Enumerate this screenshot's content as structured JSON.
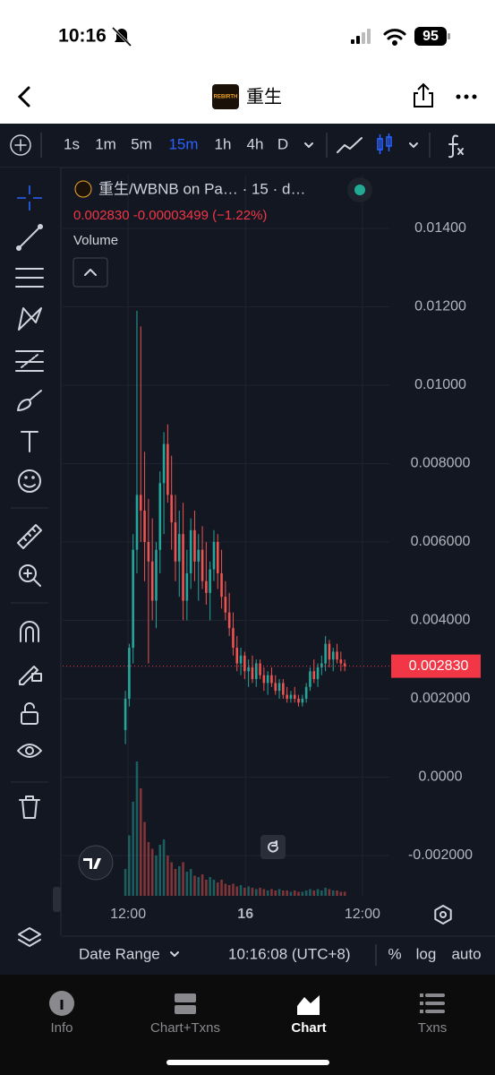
{
  "status_bar": {
    "time": "10:16",
    "battery": "95"
  },
  "nav": {
    "title": "重生",
    "icon_text": "REBIRTH"
  },
  "toolbar": {
    "intervals": [
      "1s",
      "1m",
      "5m",
      "15m",
      "1h",
      "4h",
      "D"
    ],
    "active_interval": 3
  },
  "chart_data": {
    "type": "candlestick",
    "legend_title": "重生/WBNB on Pa… · 15 · d…",
    "ohlc_label": "0.002830  -0.00003499 (−1.22%)",
    "volume_label": "Volume",
    "open": [
      0.0012,
      0.002,
      0.0033,
      0.0058,
      0.0072,
      0.0068,
      0.006,
      0.0055,
      0.0045,
      0.0058,
      0.0075,
      0.0085,
      0.0072,
      0.0065,
      0.0055,
      0.0062,
      0.0045,
      0.0052,
      0.0063,
      0.0055,
      0.0058,
      0.005,
      0.0047,
      0.0053,
      0.006,
      0.0052,
      0.0046,
      0.0042,
      0.0038,
      0.0033,
      0.0029,
      0.0031,
      0.0027,
      0.0028,
      0.0025,
      0.0029,
      0.0026,
      0.0024,
      0.0026,
      0.0024,
      0.0022,
      0.0024,
      0.0021,
      0.002,
      0.0021,
      0.002,
      0.0019,
      0.002,
      0.0023,
      0.0027,
      0.0025,
      0.0028,
      0.0029,
      0.0034,
      0.003,
      0.0032,
      0.003,
      0.0029
    ],
    "high": [
      0.0022,
      0.0034,
      0.0062,
      0.0119,
      0.0115,
      0.0083,
      0.0071,
      0.0066,
      0.006,
      0.0078,
      0.0088,
      0.009,
      0.0082,
      0.0072,
      0.0068,
      0.007,
      0.0058,
      0.0066,
      0.0068,
      0.0062,
      0.0064,
      0.006,
      0.0055,
      0.0063,
      0.0062,
      0.0058,
      0.005,
      0.0047,
      0.0042,
      0.0036,
      0.0033,
      0.0032,
      0.003,
      0.0031,
      0.003,
      0.003,
      0.0028,
      0.0027,
      0.0028,
      0.0026,
      0.0025,
      0.0025,
      0.0023,
      0.0022,
      0.0023,
      0.0021,
      0.0021,
      0.0024,
      0.0028,
      0.003,
      0.0029,
      0.0031,
      0.0036,
      0.0035,
      0.0033,
      0.0034,
      0.0032,
      0.003
    ],
    "low": [
      0.00084,
      0.0018,
      0.0029,
      0.0052,
      0.006,
      0.005,
      0.0029,
      0.004,
      0.0038,
      0.0052,
      0.0062,
      0.007,
      0.0058,
      0.005,
      0.0046,
      0.004,
      0.004,
      0.0048,
      0.005,
      0.0045,
      0.0048,
      0.0044,
      0.004,
      0.005,
      0.0048,
      0.0043,
      0.004,
      0.0036,
      0.0031,
      0.0027,
      0.0026,
      0.0025,
      0.0023,
      0.0024,
      0.0023,
      0.0025,
      0.0022,
      0.0021,
      0.0023,
      0.0021,
      0.002,
      0.002,
      0.0019,
      0.0019,
      0.0019,
      0.0018,
      0.0018,
      0.0019,
      0.0022,
      0.0024,
      0.0023,
      0.0026,
      0.0027,
      0.0028,
      0.0027,
      0.0029,
      0.0027,
      0.0027
    ],
    "close": [
      0.002,
      0.0033,
      0.0058,
      0.0072,
      0.0068,
      0.006,
      0.0055,
      0.0045,
      0.0058,
      0.0075,
      0.0085,
      0.0072,
      0.0065,
      0.0055,
      0.0062,
      0.0045,
      0.0052,
      0.0063,
      0.0055,
      0.0058,
      0.005,
      0.0047,
      0.0053,
      0.006,
      0.0052,
      0.0046,
      0.0042,
      0.0038,
      0.0033,
      0.0029,
      0.0031,
      0.0027,
      0.0028,
      0.0025,
      0.0029,
      0.0026,
      0.0024,
      0.0026,
      0.0024,
      0.0022,
      0.0024,
      0.0021,
      0.002,
      0.0021,
      0.002,
      0.0019,
      0.002,
      0.0023,
      0.0027,
      0.0025,
      0.0028,
      0.0029,
      0.0034,
      0.003,
      0.0032,
      0.003,
      0.0029,
      0.00283
    ],
    "volume": [
      20,
      45,
      70,
      100,
      80,
      55,
      40,
      35,
      30,
      38,
      42,
      30,
      25,
      20,
      22,
      25,
      18,
      20,
      15,
      14,
      16,
      12,
      14,
      12,
      10,
      12,
      9,
      8,
      9,
      7,
      8,
      6,
      7,
      6,
      5,
      6,
      5,
      4,
      5,
      4,
      5,
      4,
      4,
      3,
      4,
      3,
      3,
      4,
      5,
      4,
      5,
      4,
      6,
      5,
      4,
      4,
      3,
      3
    ],
    "volume_lim": [
      0,
      100
    ],
    "up_color": "#26a69a",
    "down_color": "#ef5350",
    "ylim": [
      -0.00303,
      0.01537
    ],
    "yticks": [
      {
        "value": 0.014,
        "label": "0.01400"
      },
      {
        "value": 0.012,
        "label": "0.01200"
      },
      {
        "value": 0.01,
        "label": "0.01000"
      },
      {
        "value": 0.008,
        "label": "0.008000"
      },
      {
        "value": 0.006,
        "label": "0.006000"
      },
      {
        "value": 0.004,
        "label": "0.004000"
      },
      {
        "value": 0.002,
        "label": "0.002000"
      },
      {
        "value": 0,
        "label": "0.0000"
      },
      {
        "value": -0.002,
        "label": "-0.002000"
      }
    ],
    "xlim": [
      -16.3,
      68.6
    ],
    "xticks": [
      {
        "value": 0.7,
        "label": "12:00"
      },
      {
        "value": 31.2,
        "label": "16"
      },
      {
        "value": 61.6,
        "label": "12:00"
      }
    ],
    "last_price_label": "0.002830",
    "grid": true
  },
  "bottom_bar": {
    "date_range": "Date Range",
    "clock": "10:16:08 (UTC+8)",
    "options": [
      "%",
      "log",
      "auto"
    ]
  },
  "tabs": [
    "Info",
    "Chart+Txns",
    "Chart",
    "Txns"
  ],
  "active_tab": 2
}
